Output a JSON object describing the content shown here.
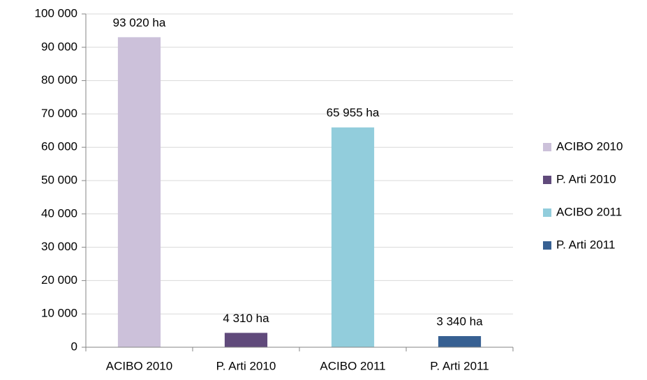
{
  "chart_data": {
    "type": "bar",
    "categories": [
      "ACIBO 2010",
      "P. Arti 2010",
      "ACIBO 2011",
      "P. Arti 2011"
    ],
    "values": [
      93020,
      4310,
      65955,
      3340
    ],
    "value_labels": [
      "93 020 ha",
      "4 310 ha",
      "65 955 ha",
      "3 340 ha"
    ],
    "colors": [
      "#ccc1da",
      "#604a7b",
      "#92cddc",
      "#376092"
    ],
    "ylim": [
      0,
      100000
    ],
    "yticks": [
      0,
      {
        "value": 10000,
        "label": "10 000"
      },
      {
        "value": 20000,
        "label": "20 000"
      },
      {
        "value": 30000,
        "label": "30 000"
      },
      {
        "value": 40000,
        "label": "40 000"
      },
      {
        "value": 50000,
        "label": "50 000"
      },
      {
        "value": 60000,
        "label": "60 000"
      },
      {
        "value": 70000,
        "label": "70 000"
      },
      {
        "value": 80000,
        "label": "80 000"
      },
      {
        "value": 90000,
        "label": "90 000"
      },
      {
        "value": 100000,
        "label": "100 000"
      }
    ],
    "grid": true,
    "legend": "right"
  }
}
